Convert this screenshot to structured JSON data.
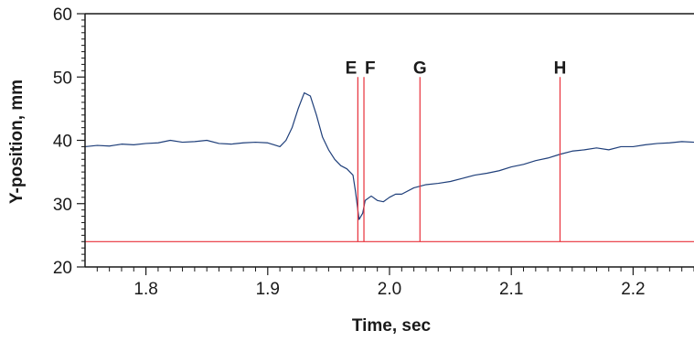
{
  "chart_data": {
    "type": "line",
    "xlabel": "Time, sec",
    "ylabel": "Y-position, mm",
    "xlim": [
      1.75,
      2.25
    ],
    "ylim": [
      20,
      60
    ],
    "x_ticks": [
      1.8,
      1.9,
      2.0,
      2.1,
      2.2
    ],
    "x_tick_labels": [
      "1.8",
      "1.9",
      "2.0",
      "2.1",
      "2.2"
    ],
    "y_ticks": [
      20,
      30,
      40,
      50,
      60
    ],
    "y_tick_labels": [
      "20",
      "30",
      "40",
      "50",
      "60"
    ],
    "grid": false,
    "series": [
      {
        "color": "#1f3f7a",
        "x": [
          1.75,
          1.76,
          1.77,
          1.78,
          1.79,
          1.8,
          1.81,
          1.82,
          1.83,
          1.84,
          1.85,
          1.86,
          1.87,
          1.88,
          1.89,
          1.9,
          1.905,
          1.91,
          1.915,
          1.92,
          1.925,
          1.93,
          1.935,
          1.94,
          1.945,
          1.95,
          1.955,
          1.96,
          1.965,
          1.97,
          1.972,
          1.975,
          1.978,
          1.98,
          1.985,
          1.99,
          1.995,
          2.0,
          2.005,
          2.01,
          2.02,
          2.03,
          2.04,
          2.05,
          2.06,
          2.07,
          2.08,
          2.09,
          2.1,
          2.11,
          2.12,
          2.13,
          2.14,
          2.15,
          2.16,
          2.17,
          2.18,
          2.19,
          2.2,
          2.21,
          2.22,
          2.23,
          2.24,
          2.25
        ],
        "y": [
          39.0,
          39.2,
          39.1,
          39.4,
          39.3,
          39.5,
          39.6,
          40.0,
          39.7,
          39.8,
          40.0,
          39.5,
          39.4,
          39.6,
          39.7,
          39.6,
          39.3,
          39.0,
          40.0,
          42.0,
          45.0,
          47.5,
          47.0,
          44.0,
          40.5,
          38.5,
          37.0,
          36.0,
          35.5,
          34.5,
          32.0,
          27.5,
          28.5,
          30.5,
          31.2,
          30.5,
          30.3,
          31.0,
          31.5,
          31.5,
          32.5,
          33.0,
          33.2,
          33.5,
          34.0,
          34.5,
          34.8,
          35.2,
          35.8,
          36.2,
          36.8,
          37.2,
          37.8,
          38.3,
          38.5,
          38.8,
          38.5,
          39.0,
          39.0,
          39.3,
          39.5,
          39.6,
          39.8,
          39.7
        ]
      }
    ],
    "vertical_markers": [
      {
        "label": "E",
        "x": 1.974,
        "color": "#e8303a"
      },
      {
        "label": "F",
        "x": 1.979,
        "color": "#e8303a"
      },
      {
        "label": "G",
        "x": 2.025,
        "color": "#e8303a"
      },
      {
        "label": "H",
        "x": 2.14,
        "color": "#e8303a"
      }
    ],
    "horizontal_lines": [
      {
        "y": 24,
        "color": "#e8303a"
      }
    ]
  }
}
